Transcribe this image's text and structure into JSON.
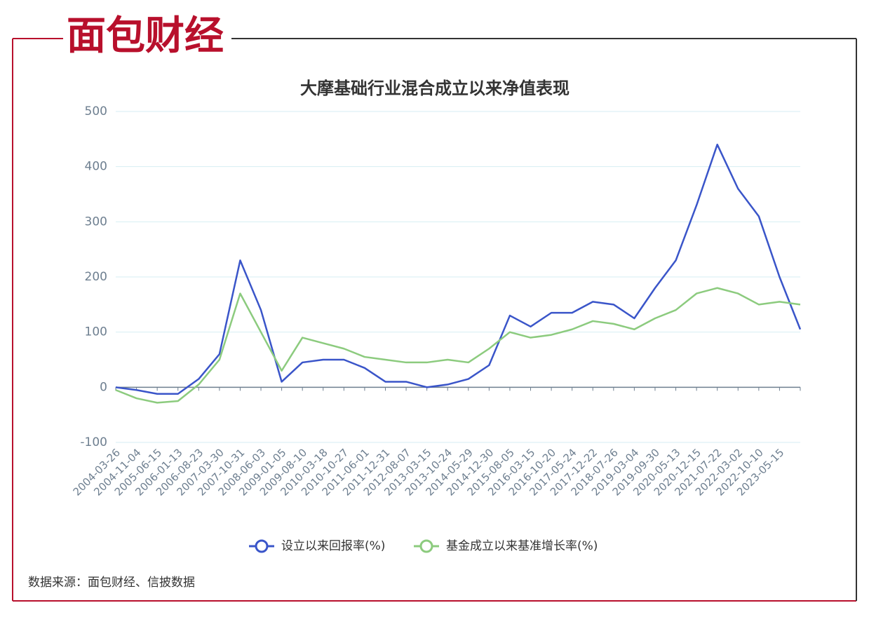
{
  "logo": "面包财经",
  "chart_data": {
    "type": "line",
    "title": "大摩基础行业混合成立以来净值表现",
    "categories": [
      "2004-03-26",
      "2004-11-04",
      "2005-06-15",
      "2006-01-13",
      "2006-08-23",
      "2007-03-30",
      "2007-10-31",
      "2008-06-03",
      "2009-01-05",
      "2009-08-10",
      "2010-03-18",
      "2010-10-27",
      "2011-06-01",
      "2011-12-31",
      "2012-08-07",
      "2013-03-15",
      "2013-10-24",
      "2014-05-29",
      "2014-12-30",
      "2015-08-05",
      "2016-03-15",
      "2016-10-20",
      "2017-05-24",
      "2017-12-22",
      "2018-07-26",
      "2019-03-04",
      "2019-09-30",
      "2020-05-13",
      "2020-12-15",
      "2021-07-22",
      "2022-03-02",
      "2022-10-10",
      "2023-05-15",
      null
    ],
    "series": [
      {
        "name": "设立以来回报率(%)",
        "color": "#3a55c9",
        "values": [
          0,
          -5,
          -12,
          -12,
          15,
          60,
          230,
          140,
          10,
          45,
          50,
          50,
          35,
          10,
          10,
          0,
          5,
          15,
          40,
          130,
          110,
          135,
          135,
          155,
          150,
          125,
          180,
          230,
          330,
          440,
          360,
          310,
          200,
          105
        ]
      },
      {
        "name": "基金成立以来基准增长率(%)",
        "color": "#8ccb7e",
        "values": [
          -5,
          -20,
          -28,
          -25,
          5,
          50,
          170,
          100,
          30,
          90,
          80,
          70,
          55,
          50,
          45,
          45,
          50,
          45,
          70,
          100,
          90,
          95,
          105,
          120,
          115,
          105,
          125,
          140,
          170,
          180,
          170,
          150,
          155,
          150
        ]
      }
    ],
    "ylim": [
      -100,
      500
    ],
    "yticks": [
      -100,
      0,
      100,
      200,
      300,
      400,
      500
    ],
    "grid": true,
    "legend": "bottom"
  },
  "footer": {
    "source": "数据来源：面包财经、信披数据"
  }
}
